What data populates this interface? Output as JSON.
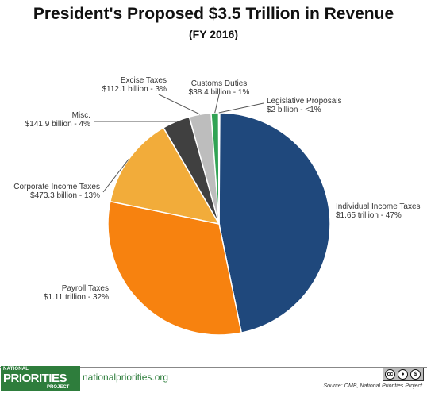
{
  "header": {
    "title": "President's Proposed $3.5 Trillion in Revenue",
    "subtitle": "(FY 2016)"
  },
  "chart_data": {
    "type": "pie",
    "title": "President's Proposed $3.5 Trillion in Revenue",
    "subtitle": "(FY 2016)",
    "start": "12 o'clock, clockwise",
    "slices": [
      {
        "label": "Individual  Income Taxes",
        "value_text": "$1.65 trillion - 47%",
        "value": 1650,
        "color": "#1f487c"
      },
      {
        "label": "Payroll Taxes",
        "value_text": "$1.11 trillion - 32%",
        "value": 1110,
        "color": "#f7820f"
      },
      {
        "label": "Corporate  Income Taxes",
        "value_text": "$473.3 billion - 13%",
        "value": 473.3,
        "color": "#f2ac3a"
      },
      {
        "label": "Misc.",
        "value_text": "$141.9 billion - 4%",
        "value": 141.9,
        "color": "#404040"
      },
      {
        "label": "Excise Taxes",
        "value_text": "$112.1 billion - 3%",
        "value": 112.1,
        "color": "#bdbdbd"
      },
      {
        "label": "Customs Duties",
        "value_text": "$38.4 billion - 1%",
        "value": 38.4,
        "color": "#31a354"
      },
      {
        "label": "Legislative  Proposals",
        "value_text": "$2 billion - <1%",
        "value": 2,
        "color": "#9e9e9e"
      }
    ]
  },
  "footer": {
    "logo_line1": "NATIONAL",
    "logo_line2": "PRIORITIES",
    "logo_line3": "PROJECT",
    "site": "nationalpriorities.org",
    "source": "Source: OMB, National Priorities Project",
    "license_icon": "creative-commons-by-nc-icon"
  }
}
